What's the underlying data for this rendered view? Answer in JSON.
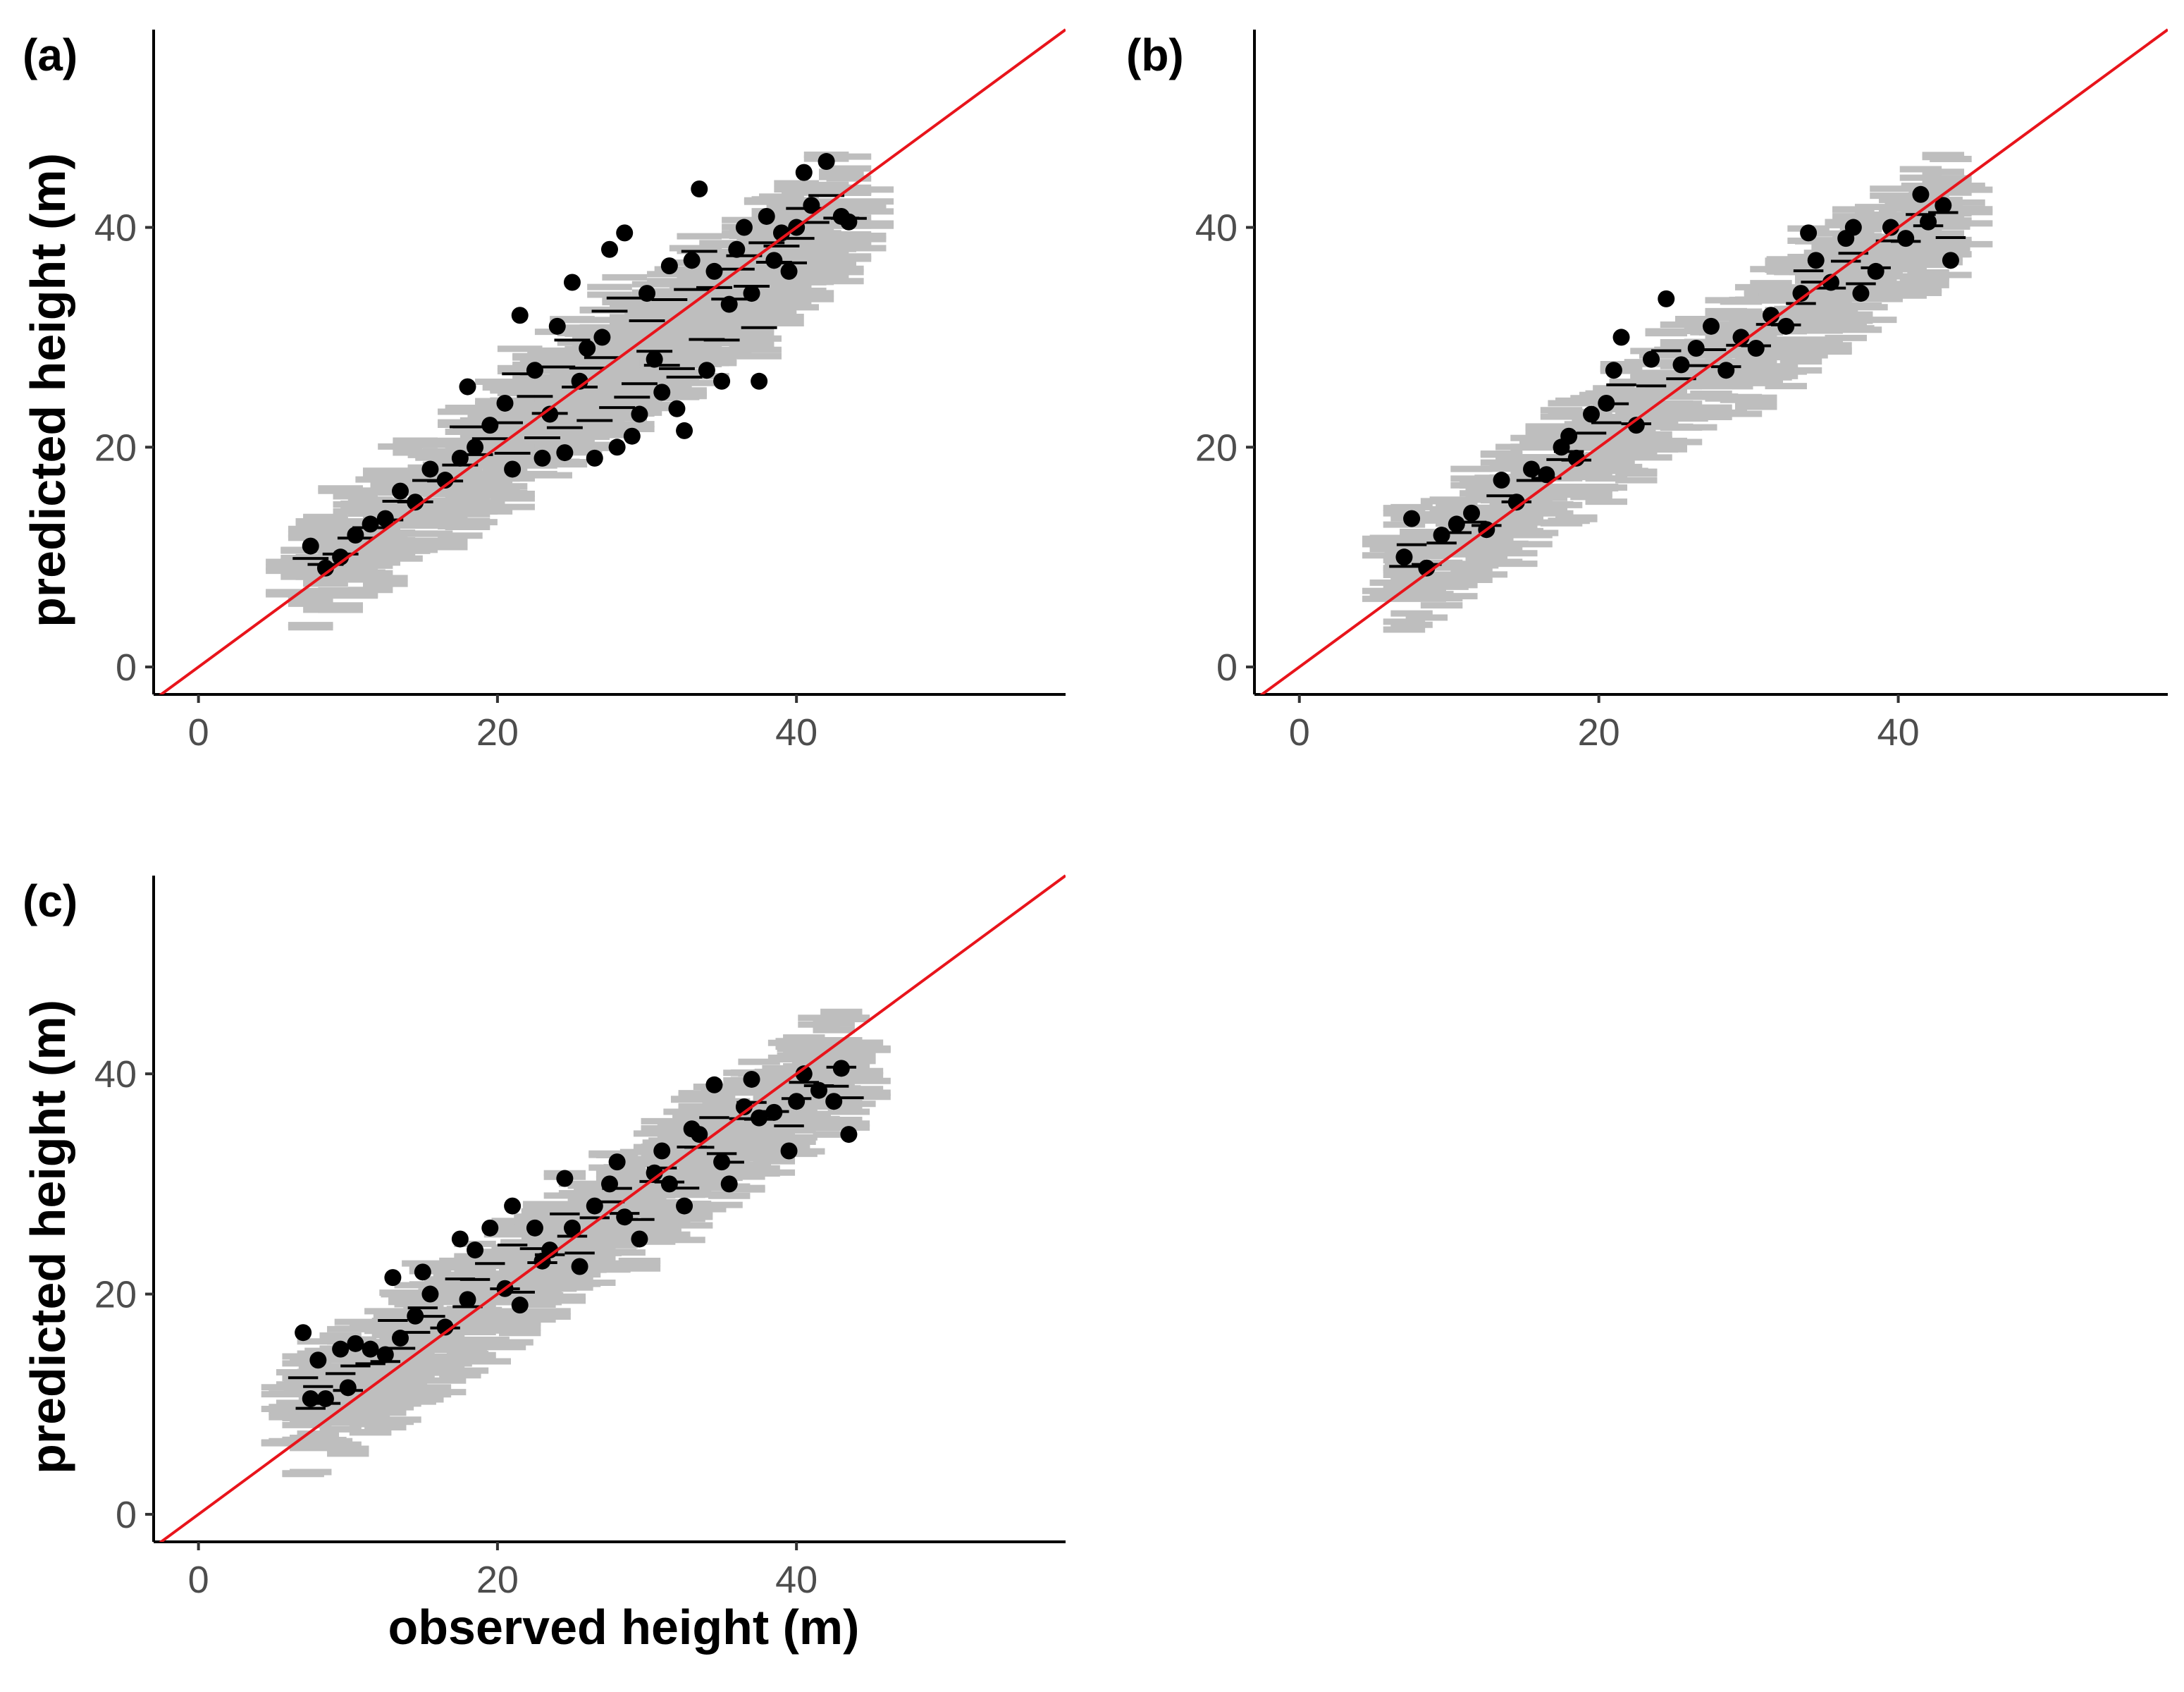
{
  "chart_data": [
    {
      "type": "scatter",
      "panel": "(a)",
      "xlabel": "",
      "ylabel": "predicted height (m)",
      "xlim": [
        -3,
        58
      ],
      "ylim": [
        -2.5,
        58
      ],
      "xticks": [
        "0",
        "20",
        "40"
      ],
      "yticks": [
        "0",
        "20",
        "40"
      ],
      "reference_line": "y = x",
      "x": [
        7.5,
        8.5,
        9.5,
        10.5,
        11.5,
        12.5,
        13.5,
        14.5,
        15.5,
        16.5,
        17.5,
        18.0,
        18.5,
        19.5,
        20.5,
        21.0,
        21.5,
        22.5,
        23.0,
        23.5,
        24.0,
        24.5,
        25.0,
        25.5,
        26.0,
        26.5,
        27.0,
        27.5,
        28.0,
        28.5,
        29.0,
        29.5,
        30.0,
        30.5,
        31.0,
        31.5,
        32.0,
        32.5,
        33.0,
        33.5,
        34.0,
        34.5,
        35.0,
        35.5,
        36.0,
        36.5,
        37.0,
        37.5,
        38.0,
        38.5,
        39.0,
        39.5,
        40.0,
        40.5,
        41.0,
        42.0,
        43.0,
        43.5
      ],
      "y": [
        11.0,
        9.0,
        10.0,
        12.0,
        13.0,
        13.5,
        16.0,
        15.0,
        18.0,
        17.0,
        19.0,
        25.5,
        20.0,
        22.0,
        24.0,
        18.0,
        32.0,
        27.0,
        19.0,
        23.0,
        31.0,
        19.5,
        35.0,
        26.0,
        29.0,
        19.0,
        30.0,
        38.0,
        20.0,
        39.5,
        21.0,
        23.0,
        34.0,
        28.0,
        25.0,
        36.5,
        23.5,
        21.5,
        37.0,
        43.5,
        27.0,
        36.0,
        26.0,
        33.0,
        38.0,
        40.0,
        34.0,
        26.0,
        41.0,
        37.0,
        39.5,
        36.0,
        40.0,
        45.0,
        42.0,
        46.0,
        41.0,
        40.5
      ],
      "pi_half_width": 3.0,
      "ci_half_width": 1.2
    },
    {
      "type": "scatter",
      "panel": "(b)",
      "xlabel": "",
      "ylabel": "",
      "xlim": [
        -3,
        58
      ],
      "ylim": [
        -2.5,
        58
      ],
      "xticks": [
        "0",
        "20",
        "40"
      ],
      "yticks": [
        "0",
        "20",
        "40"
      ],
      "reference_line": "y = x",
      "x": [
        7.0,
        7.5,
        8.5,
        9.5,
        10.5,
        11.5,
        12.5,
        13.5,
        14.5,
        15.5,
        16.5,
        17.5,
        18.0,
        18.5,
        19.5,
        20.5,
        21.0,
        21.5,
        22.5,
        23.5,
        24.5,
        25.5,
        26.5,
        27.5,
        28.5,
        29.5,
        30.5,
        31.5,
        32.5,
        33.5,
        34.0,
        34.5,
        35.5,
        36.5,
        37.0,
        37.5,
        38.5,
        39.5,
        40.5,
        41.5,
        42.0,
        43.0,
        43.5
      ],
      "y": [
        10.0,
        13.5,
        9.0,
        12.0,
        13.0,
        14.0,
        12.5,
        17.0,
        15.0,
        18.0,
        17.5,
        20.0,
        21.0,
        19.0,
        23.0,
        24.0,
        27.0,
        30.0,
        22.0,
        28.0,
        33.5,
        27.5,
        29.0,
        31.0,
        27.0,
        30.0,
        29.0,
        32.0,
        31.0,
        34.0,
        39.5,
        37.0,
        35.0,
        39.0,
        40.0,
        34.0,
        36.0,
        40.0,
        39.0,
        43.0,
        40.5,
        42.0,
        37.0
      ],
      "pi_half_width": 2.8,
      "ci_half_width": 1.0
    },
    {
      "type": "scatter",
      "panel": "(c)",
      "xlabel": "observed height (m)",
      "ylabel": "predicted height (m)",
      "xlim": [
        -3,
        58
      ],
      "ylim": [
        -2.5,
        58
      ],
      "xticks": [
        "0",
        "20",
        "40"
      ],
      "yticks": [
        "0",
        "20",
        "40"
      ],
      "reference_line": "y = x",
      "x": [
        7.0,
        7.5,
        8.0,
        8.5,
        9.5,
        10.0,
        10.5,
        11.5,
        12.5,
        13.0,
        13.5,
        14.5,
        15.0,
        15.5,
        16.5,
        17.5,
        18.0,
        18.5,
        19.5,
        20.5,
        21.0,
        21.5,
        22.5,
        23.0,
        23.5,
        24.5,
        25.0,
        25.5,
        26.5,
        27.5,
        28.0,
        28.5,
        29.5,
        30.5,
        31.0,
        31.5,
        32.5,
        33.0,
        33.5,
        34.5,
        35.0,
        35.5,
        36.5,
        37.0,
        37.5,
        38.5,
        39.5,
        40.0,
        40.5,
        41.5,
        42.5,
        43.0,
        43.5
      ],
      "y": [
        16.5,
        10.5,
        14.0,
        10.5,
        15.0,
        11.5,
        15.5,
        15.0,
        14.5,
        21.5,
        16.0,
        18.0,
        22.0,
        20.0,
        17.0,
        25.0,
        19.5,
        24.0,
        26.0,
        20.5,
        28.0,
        19.0,
        26.0,
        23.0,
        24.0,
        30.5,
        26.0,
        22.5,
        28.0,
        30.0,
        32.0,
        27.0,
        25.0,
        31.0,
        33.0,
        30.0,
        28.0,
        35.0,
        34.5,
        39.0,
        32.0,
        30.0,
        37.0,
        39.5,
        36.0,
        36.5,
        33.0,
        37.5,
        40.0,
        38.5,
        37.5,
        40.5,
        34.5
      ],
      "pi_half_width": 2.8,
      "ci_half_width": 1.0
    }
  ]
}
